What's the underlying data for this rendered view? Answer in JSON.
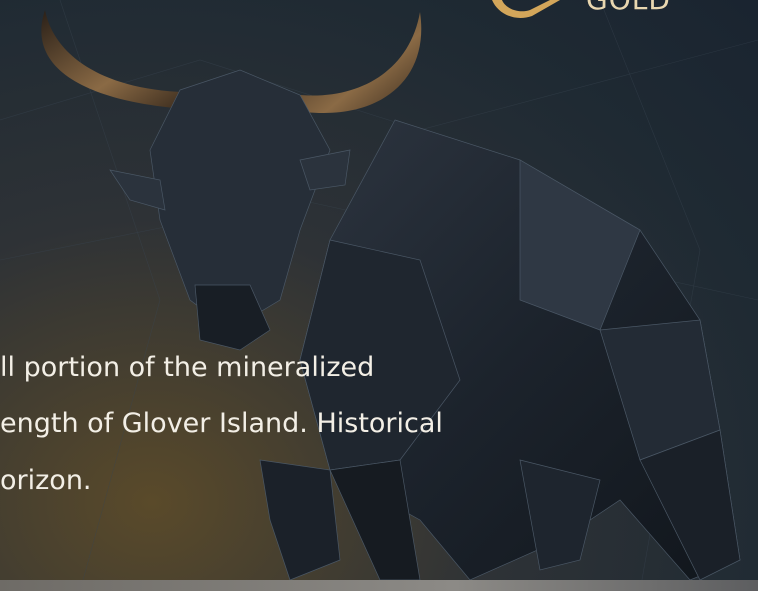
{
  "header": {
    "logo_text": "GOLD"
  },
  "hero": {
    "lines": [
      "ll portion of the mineralized",
      "ength of Glover Island. Historical",
      "orizon."
    ]
  }
}
